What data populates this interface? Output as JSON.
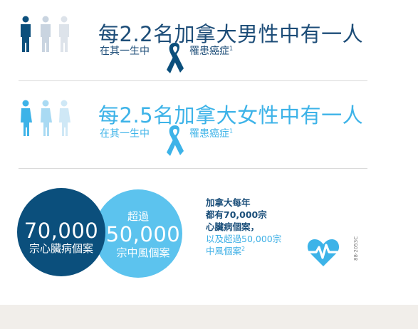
{
  "colors": {
    "dark_blue": "#0b4f7c",
    "navy_text": "#1d4d78",
    "light_blue": "#3db3e8",
    "circle_dark": "#0b4f7c",
    "circle_light": "#5cc3ee",
    "pale_blue": "#a9daf3",
    "pale_gray_blue": "#c9d4e0",
    "footer": "#f1eeea"
  },
  "men": {
    "headline": "每2.2名加拿大男性中有一人",
    "sub_before": "在其一生中",
    "sub_after": "罹患癌症",
    "footnote": "1"
  },
  "women": {
    "headline": "每2.5名加拿大女性中有一人",
    "sub_before": "在其一生中",
    "sub_after": "罹患癌症",
    "footnote": "1"
  },
  "heart": {
    "number": "70,000",
    "label": "宗心臟病個案"
  },
  "stroke": {
    "prefix": "超過",
    "number": "50,000",
    "label": "宗中風個案"
  },
  "side_text": {
    "line1": "加拿大每年",
    "line2": "都有70,000宗",
    "line3": "心臟病個案，",
    "line4": "以及超過50,000宗",
    "line5": "中風個案",
    "footnote": "2"
  },
  "code": "88-2053C"
}
